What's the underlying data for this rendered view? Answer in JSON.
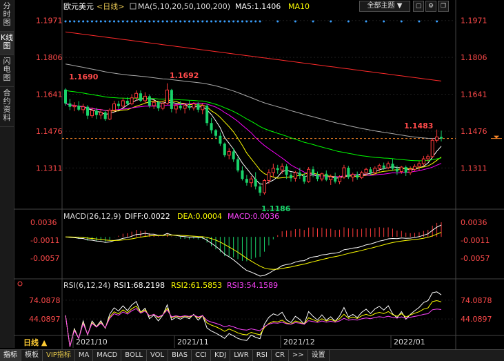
{
  "sidebar": {
    "tabs": [
      {
        "label": "分时图"
      },
      {
        "label": "K线图"
      },
      {
        "label": "闪电图"
      },
      {
        "label": "合约资料"
      }
    ],
    "period_label": "日线 ▲"
  },
  "header": {
    "instrument": "欧元美元",
    "period": "<日线>",
    "ma_params": "MA(5,10,20,50,100,200)",
    "ma5_value": "MA5:1.1406",
    "ma10_label": "MA10",
    "theme_label": "全部主题 ▼"
  },
  "macd_header": {
    "name": "MACD(26,12,9)",
    "diff": "DIFF:0.0022",
    "dea": "DEA:0.0004",
    "macd": "MACD:0.0036"
  },
  "rsi_header": {
    "name": "RSI(6,12,24)",
    "rsi1": "RSI1:68.2198",
    "rsi2": "RSI2:61.5853",
    "rsi3": "RSI3:54.1589"
  },
  "annotations": {
    "high1": "1.1690",
    "high2": "1.1692",
    "low": "1.1186",
    "recent_high": "1.1483"
  },
  "bottom_tabs": [
    "指标",
    "模板",
    "VIP指标",
    "MA",
    "MACD",
    "BOLL",
    "VOL",
    "BIAS",
    "CCI",
    "KDJ",
    "LWR",
    "RSI",
    "CR",
    ">>",
    "设置"
  ],
  "colors": {
    "up": "#ff3b3b",
    "down": "#19d36a",
    "ma5": "#ffffff",
    "ma10": "#ffff00",
    "ma20": "#ff00ff",
    "ma50": "#00ff00",
    "ma100": "#aaaaaa",
    "ma200": "#ff2a2a"
  },
  "chart_data": [
    {
      "type": "candlestick",
      "y_axis": {
        "range": [
          1.1136,
          1.2001
        ],
        "ticks": [
          1.1971,
          1.1806,
          1.1641,
          1.1476,
          1.1311
        ],
        "tick_labels": [
          "1.1971",
          "1.1806",
          "1.1641",
          "1.1476",
          "1.1311"
        ]
      },
      "x_axis": {
        "labels": [
          "2021/10",
          "2021/11",
          "2021/12",
          "2022/01"
        ]
      },
      "last_price": 1.1443,
      "candles": [
        [
          1.1662,
          1.1668,
          1.159,
          1.16
        ],
        [
          1.16,
          1.162,
          1.157,
          1.1585
        ],
        [
          1.1585,
          1.1605,
          1.1565,
          1.159
        ],
        [
          1.159,
          1.161,
          1.1565,
          1.1572
        ],
        [
          1.1572,
          1.1598,
          1.1555,
          1.1585
        ],
        [
          1.1585,
          1.1592,
          1.153,
          1.1545
        ],
        [
          1.1545,
          1.1582,
          1.1535,
          1.1568
        ],
        [
          1.1568,
          1.158,
          1.153,
          1.1548
        ],
        [
          1.1548,
          1.1575,
          1.153,
          1.156
        ],
        [
          1.156,
          1.157,
          1.1522,
          1.153
        ],
        [
          1.153,
          1.1578,
          1.1525,
          1.157
        ],
        [
          1.157,
          1.1612,
          1.156,
          1.1598
        ],
        [
          1.1598,
          1.1612,
          1.1575,
          1.1588
        ],
        [
          1.1588,
          1.1625,
          1.158,
          1.1612
        ],
        [
          1.1612,
          1.1628,
          1.159,
          1.1598
        ],
        [
          1.1598,
          1.164,
          1.1592,
          1.1625
        ],
        [
          1.1625,
          1.1658,
          1.1612,
          1.1645
        ],
        [
          1.1645,
          1.1658,
          1.1605,
          1.1612
        ],
        [
          1.1612,
          1.165,
          1.16,
          1.1632
        ],
        [
          1.1632,
          1.164,
          1.158,
          1.159
        ],
        [
          1.159,
          1.1615,
          1.1575,
          1.1605
        ],
        [
          1.1605,
          1.1612,
          1.1565,
          1.1578
        ],
        [
          1.1578,
          1.1612,
          1.157,
          1.16
        ],
        [
          1.16,
          1.169,
          1.1595,
          1.166
        ],
        [
          1.166,
          1.1665,
          1.156,
          1.1575
        ],
        [
          1.1575,
          1.16,
          1.1555,
          1.159
        ],
        [
          1.159,
          1.161,
          1.157,
          1.1578
        ],
        [
          1.1578,
          1.16,
          1.1555,
          1.159
        ],
        [
          1.159,
          1.1612,
          1.157,
          1.158
        ],
        [
          1.158,
          1.1605,
          1.1568,
          1.1598
        ],
        [
          1.1598,
          1.1605,
          1.156,
          1.1572
        ],
        [
          1.1572,
          1.16,
          1.1552,
          1.159
        ],
        [
          1.159,
          1.1598,
          1.15,
          1.1512
        ],
        [
          1.1512,
          1.1535,
          1.1465,
          1.148
        ],
        [
          1.148,
          1.1485,
          1.1445,
          1.1455
        ],
        [
          1.1455,
          1.147,
          1.141,
          1.142
        ],
        [
          1.142,
          1.1425,
          1.136,
          1.1368
        ],
        [
          1.1368,
          1.14,
          1.135,
          1.1385
        ],
        [
          1.1385,
          1.14,
          1.1338,
          1.135
        ],
        [
          1.135,
          1.1362,
          1.1292,
          1.13
        ],
        [
          1.13,
          1.1318,
          1.1255,
          1.1262
        ],
        [
          1.1262,
          1.128,
          1.1232,
          1.1245
        ],
        [
          1.1245,
          1.1275,
          1.1225,
          1.1262
        ],
        [
          1.1262,
          1.1292,
          1.1215,
          1.1228
        ],
        [
          1.1228,
          1.1245,
          1.1186,
          1.12
        ],
        [
          1.12,
          1.1262,
          1.1192,
          1.1255
        ],
        [
          1.1255,
          1.1305,
          1.124,
          1.129
        ],
        [
          1.129,
          1.133,
          1.127,
          1.131
        ],
        [
          1.131,
          1.1325,
          1.1285,
          1.1302
        ],
        [
          1.1302,
          1.1332,
          1.1285,
          1.1318
        ],
        [
          1.1318,
          1.1328,
          1.1262,
          1.128
        ],
        [
          1.128,
          1.1292,
          1.125,
          1.1265
        ],
        [
          1.1265,
          1.1298,
          1.125,
          1.129
        ],
        [
          1.129,
          1.1312,
          1.1262,
          1.1275
        ],
        [
          1.1275,
          1.1288,
          1.124,
          1.125
        ],
        [
          1.125,
          1.1315,
          1.1245,
          1.1305
        ],
        [
          1.1305,
          1.1318,
          1.127,
          1.1282
        ],
        [
          1.1282,
          1.1295,
          1.1252,
          1.1262
        ],
        [
          1.1262,
          1.129,
          1.1252,
          1.1285
        ],
        [
          1.1285,
          1.13,
          1.1252,
          1.1258
        ],
        [
          1.1258,
          1.1282,
          1.1235,
          1.1272
        ],
        [
          1.1272,
          1.129,
          1.1242,
          1.125
        ],
        [
          1.125,
          1.1278,
          1.1238,
          1.127
        ],
        [
          1.127,
          1.1325,
          1.1262,
          1.1312
        ],
        [
          1.1312,
          1.132,
          1.1262,
          1.127
        ],
        [
          1.127,
          1.129,
          1.125,
          1.1282
        ],
        [
          1.1282,
          1.1295,
          1.1258,
          1.1268
        ],
        [
          1.1268,
          1.1298,
          1.1262,
          1.129
        ],
        [
          1.129,
          1.1312,
          1.1278,
          1.1305
        ],
        [
          1.1305,
          1.1315,
          1.128,
          1.129
        ],
        [
          1.129,
          1.1318,
          1.1282,
          1.131
        ],
        [
          1.131,
          1.133,
          1.1295,
          1.1322
        ],
        [
          1.1322,
          1.1335,
          1.1302,
          1.1312
        ],
        [
          1.1312,
          1.134,
          1.1305,
          1.133
        ],
        [
          1.133,
          1.1352,
          1.1298,
          1.1308
        ],
        [
          1.1308,
          1.1322,
          1.128,
          1.1295
        ],
        [
          1.1295,
          1.132,
          1.1285,
          1.1315
        ],
        [
          1.1315,
          1.1322,
          1.1275,
          1.129
        ],
        [
          1.129,
          1.1318,
          1.128,
          1.1305
        ],
        [
          1.1305,
          1.1328,
          1.1295,
          1.1318
        ],
        [
          1.1318,
          1.1342,
          1.13,
          1.133
        ],
        [
          1.133,
          1.1365,
          1.1318,
          1.1352
        ],
        [
          1.1352,
          1.1372,
          1.134,
          1.1362
        ],
        [
          1.1362,
          1.1445,
          1.1355,
          1.1435
        ],
        [
          1.1435,
          1.1483,
          1.1425,
          1.145
        ],
        [
          1.145,
          1.1478,
          1.143,
          1.1443
        ]
      ]
    },
    {
      "type": "macd",
      "y_axis": {
        "ticks": [
          0.0036,
          -0.0011,
          -0.0057
        ],
        "tick_labels": [
          "0.0036",
          "-0.0011",
          "-0.0057"
        ]
      },
      "series_names": [
        "DIFF",
        "DEA",
        "MACD"
      ]
    },
    {
      "type": "rsi",
      "y_axis": {
        "ticks": [
          74.0878,
          44.0897
        ],
        "tick_labels": [
          "74.0878",
          "44.0897"
        ]
      },
      "series_names": [
        "RSI1",
        "RSI2",
        "RSI3"
      ]
    }
  ]
}
